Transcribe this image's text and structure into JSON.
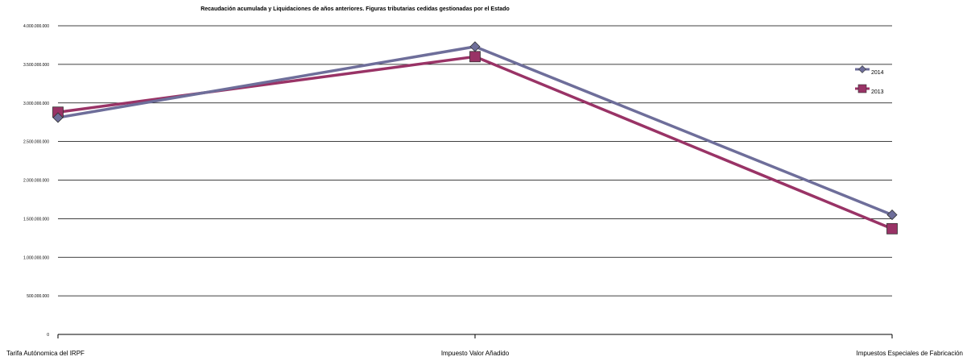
{
  "chart_data": {
    "type": "line",
    "title": "Recaudación acumulada y Liquidaciones de años anteriores. Figuras tributarias cedidas gestionadas por el Estado",
    "categories": [
      "Tarifa Autónomica del IRPF",
      "Impuesto Valor Añadido",
      "Impuestos Especiales de Fabricación"
    ],
    "y_tick_labels": [
      "0",
      "500.000.000",
      "1.000.000.000",
      "1.500.000.000",
      "2.000.000.000",
      "2.500.000.000",
      "3.000.000.000",
      "3.500.000.000",
      "4.000.000.000"
    ],
    "ylim": [
      0,
      4000000000
    ],
    "grid": true,
    "legend_position": "right",
    "series": [
      {
        "name": "2014",
        "values": [
          2810000000,
          3730000000,
          1550000000
        ],
        "color": "#6E6E9A",
        "marker": "diamond"
      },
      {
        "name": "2013",
        "values": [
          2880000000,
          3600000000,
          1370000000
        ],
        "color": "#993366",
        "marker": "square"
      }
    ]
  }
}
